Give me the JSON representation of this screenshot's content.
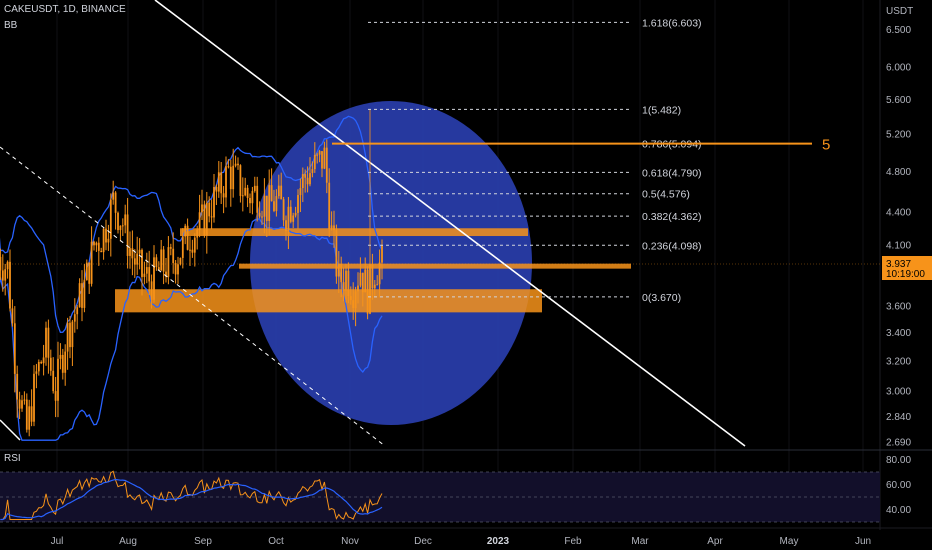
{
  "header": {
    "symbol_line": "CAKEUSDT, 1D, BINANCE",
    "indicator": "BB"
  },
  "price_axis": {
    "unit_label": "USDT",
    "ticks": [
      "6.500",
      "6.000",
      "5.600",
      "5.200",
      "4.800",
      "4.400",
      "4.100",
      "3.600",
      "3.400",
      "3.200",
      "3.000",
      "2.840",
      "2.690"
    ],
    "tick_values": [
      6.5,
      6.0,
      5.6,
      5.2,
      4.8,
      4.4,
      4.1,
      3.6,
      3.4,
      3.2,
      3.0,
      2.84,
      2.69
    ],
    "scale": "log",
    "range": [
      2.66,
      7.0
    ],
    "current_price": "3.937",
    "countdown": "10:19:00",
    "current_price_value": 3.937
  },
  "time_axis": {
    "labels": [
      "Jul",
      "Aug",
      "Sep",
      "Oct",
      "Nov",
      "Dec",
      "2023",
      "Feb",
      "Mar",
      "Apr",
      "May",
      "Jun"
    ]
  },
  "rsi": {
    "label": "RSI",
    "ticks": [
      "80.00",
      "60.00",
      "40.00"
    ],
    "tick_values": [
      80,
      60,
      40
    ],
    "range": [
      30,
      86
    ]
  },
  "annotations": {
    "wave_label": "5",
    "fib_levels": [
      {
        "label": "1.618(6.603)",
        "price": 6.603
      },
      {
        "label": "1(5.482)",
        "price": 5.482
      },
      {
        "label": "0.786(5.094)",
        "price": 5.094
      },
      {
        "label": "0.618(4.790)",
        "price": 4.79
      },
      {
        "label": "0.5(4.576)",
        "price": 4.576
      },
      {
        "label": "0.382(4.362)",
        "price": 4.362
      },
      {
        "label": "0.236(4.098)",
        "price": 4.098
      },
      {
        "label": "0(3.670)",
        "price": 3.67
      }
    ],
    "zones": [
      {
        "from": 4.18,
        "to": 4.25
      },
      {
        "from": 3.9,
        "to": 3.94
      },
      {
        "from": 3.55,
        "to": 3.73
      }
    ]
  },
  "colors": {
    "background": "#000000",
    "candle": "#f7931a",
    "band": "#2962ff",
    "zone": "#f7931a",
    "circle": "#2a3fb0",
    "trendline": "#ffffff",
    "price_tag": "#f7931a",
    "rsi_line": "#f7931a",
    "rsi_ma": "#2962ff"
  },
  "chart_data": {
    "type": "candlestick",
    "title": "CAKEUSDT, 1D, BINANCE",
    "y_scale": "log",
    "y_range": [
      2.66,
      7.0
    ],
    "series": [
      {
        "name": "BB",
        "values_note": ""
      }
    ],
    "close_path": [
      [
        "Jun 20",
        4.0
      ],
      [
        "Jun 24",
        3.9
      ],
      [
        "Jun 28",
        3.05
      ],
      [
        "Jul 2",
        2.75
      ],
      [
        "Jul 6",
        3.1
      ],
      [
        "Jul 10",
        3.3
      ],
      [
        "Jul 14",
        3.0
      ],
      [
        "Jul 18",
        3.35
      ],
      [
        "Jul 22",
        3.55
      ],
      [
        "Jul 26",
        3.75
      ],
      [
        "Jul 30",
        4.1
      ],
      [
        "Aug 3",
        4.2
      ],
      [
        "Aug 7",
        4.5
      ],
      [
        "Aug 11",
        4.3
      ],
      [
        "Aug 15",
        4.0
      ],
      [
        "Aug 19",
        3.85
      ],
      [
        "Aug 23",
        3.8
      ],
      [
        "Aug 27",
        3.9
      ],
      [
        "Aug 31",
        3.95
      ],
      [
        "Sep 4",
        4.05
      ],
      [
        "Sep 8",
        4.2
      ],
      [
        "Sep 12",
        4.25
      ],
      [
        "Sep 16",
        4.45
      ],
      [
        "Sep 20",
        4.6
      ],
      [
        "Sep 24",
        4.8
      ],
      [
        "Sep 28",
        4.7
      ],
      [
        "Oct 2",
        4.55
      ],
      [
        "Oct 6",
        4.6
      ],
      [
        "Oct 10",
        4.45
      ],
      [
        "Oct 14",
        4.5
      ],
      [
        "Oct 18",
        4.4
      ],
      [
        "Oct 22",
        4.55
      ],
      [
        "Oct 26",
        4.75
      ],
      [
        "Oct 30",
        4.85
      ],
      [
        "Nov 3",
        4.95
      ],
      [
        "Nov 6",
        4.2
      ],
      [
        "Nov 9",
        3.8
      ],
      [
        "Nov 12",
        3.85
      ],
      [
        "Nov 15",
        3.75
      ],
      [
        "Nov 18",
        3.9
      ],
      [
        "Nov 21",
        3.7
      ],
      [
        "Nov 24",
        3.9
      ],
      [
        "Nov 27",
        3.94
      ]
    ]
  }
}
